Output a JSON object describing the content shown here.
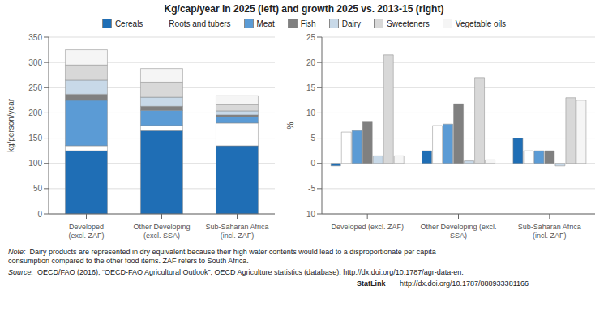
{
  "title": "Kg/cap/year in 2025 (left) and growth 2025 vs. 2013-15 (right)",
  "annotations": [
    {
      "label": "Note:",
      "text": "  Dairy products are represented in dry equivalent because their high water contents would lead to a disproportionate per capita\nconsumption compared to the other food items. ZAF refers to South Africa."
    },
    {
      "label": "Source:",
      "text": "  OECD/FAO (2016), “OECD-FAO Agricultural Outlook”, OECD Agriculture statistics (database), http://dx.doi.org/10.1787/agr-data-en."
    },
    {
      "label": "StatLink",
      "text": "       http://dx.doi.org/10.1787/888933381166"
    }
  ],
  "chart_data": [
    {
      "type": "bar",
      "stacked": true,
      "legend": "top",
      "grid": true,
      "categories": [
        "Developed\n(excl. ZAF)",
        "Other Developing\n(excl. SSA)",
        "Sub-Saharan Africa\n(incl. ZAF)"
      ],
      "ylabel": "kg/person/year",
      "ylim": [
        0,
        350
      ],
      "yticks": [
        0,
        50,
        100,
        150,
        200,
        250,
        300,
        350
      ],
      "series": [
        {
          "name": "Cereals",
          "color": "#1f6eb5",
          "values": [
            125,
            165,
            135
          ]
        },
        {
          "name": "Roots and tubers",
          "color": "#ffffff",
          "values": [
            10,
            10,
            45
          ]
        },
        {
          "name": "Meat",
          "color": "#5b9bd5",
          "values": [
            90,
            30,
            12
          ]
        },
        {
          "name": "Fish",
          "color": "#808080",
          "values": [
            12,
            8,
            4
          ]
        },
        {
          "name": "Dairy",
          "color": "#c8d9e8",
          "values": [
            28,
            18,
            8
          ]
        },
        {
          "name": "Sweeteners",
          "color": "#d8d8d8",
          "values": [
            30,
            30,
            12
          ]
        },
        {
          "name": "Vegetable oils",
          "color": "#f5f5f5",
          "values": [
            30,
            27,
            18
          ]
        }
      ]
    },
    {
      "type": "bar",
      "stacked": false,
      "grid": true,
      "categories": [
        "Developed (excl. ZAF)",
        "Other Developing (excl.\nSSA)",
        "Sub-Saharan Africa\n(incl. ZAF)"
      ],
      "ylabel": "%",
      "ylim": [
        -10,
        25
      ],
      "yticks": [
        -10,
        -5,
        0,
        5,
        10,
        15,
        20,
        25
      ],
      "series": [
        {
          "name": "Cereals",
          "color": "#1f6eb5",
          "values": [
            -0.5,
            2.5,
            5.0
          ]
        },
        {
          "name": "Roots and tubers",
          "color": "#ffffff",
          "values": [
            6.2,
            7.5,
            2.5
          ]
        },
        {
          "name": "Meat",
          "color": "#5b9bd5",
          "values": [
            6.5,
            7.8,
            2.5
          ]
        },
        {
          "name": "Fish",
          "color": "#808080",
          "values": [
            8.2,
            11.8,
            2.5
          ]
        },
        {
          "name": "Dairy",
          "color": "#c8d9e8",
          "values": [
            1.5,
            0.5,
            -0.5
          ]
        },
        {
          "name": "Sweeteners",
          "color": "#d8d8d8",
          "values": [
            21.5,
            17.0,
            13.0
          ]
        },
        {
          "name": "Vegetable oils",
          "color": "#f5f5f5",
          "values": [
            1.5,
            0.7,
            12.5
          ]
        }
      ]
    }
  ]
}
